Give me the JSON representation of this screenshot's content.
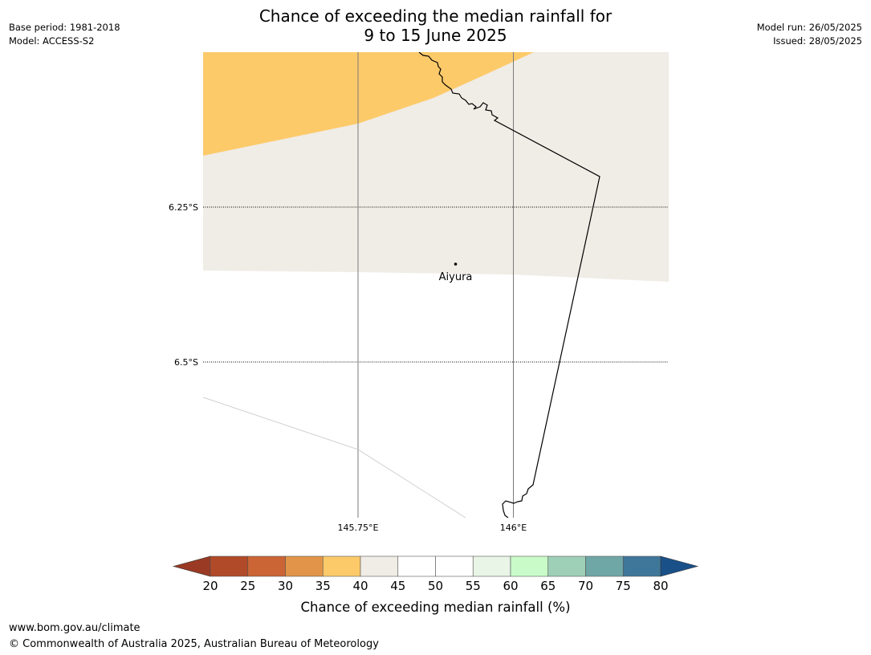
{
  "title": {
    "line1": "Chance of exceeding the median rainfall for",
    "line2": "9 to 15 June 2025"
  },
  "info_left": {
    "base_period": "Base period: 1981-2018",
    "model": "Model: ACCESS-S2"
  },
  "info_right": {
    "model_run": "Model run: 26/05/2025",
    "issued": "Issued: 28/05/2025"
  },
  "map": {
    "latitude_labels": [
      "6.25°S",
      "6.5°S"
    ],
    "longitude_labels": [
      "145.75°E",
      "146°E"
    ],
    "place_name": "Aiyura",
    "region_colors": {
      "35_to_40": "#fdca6a",
      "40_to_45": "#f0ece6",
      "45_to_55": "#ffffff"
    }
  },
  "colorbar": {
    "title": "Chance of exceeding median rainfall (%)",
    "ticks": [
      "20",
      "25",
      "30",
      "35",
      "40",
      "45",
      "50",
      "55",
      "60",
      "65",
      "70",
      "75",
      "80"
    ],
    "below_color": "#9a3a24",
    "above_color": "#1a5088",
    "bins": [
      {
        "range": "20-25",
        "color": "#b04a28"
      },
      {
        "range": "25-30",
        "color": "#cc6535"
      },
      {
        "range": "30-35",
        "color": "#e29548"
      },
      {
        "range": "35-40",
        "color": "#fdca6a"
      },
      {
        "range": "40-45",
        "color": "#f0ece6"
      },
      {
        "range": "45-50",
        "color": "#ffffff"
      },
      {
        "range": "50-55",
        "color": "#ffffff"
      },
      {
        "range": "55-60",
        "color": "#e9f5e7"
      },
      {
        "range": "60-65",
        "color": "#c9fbc9"
      },
      {
        "range": "65-70",
        "color": "#9ed0b7"
      },
      {
        "range": "70-75",
        "color": "#6fa7a7"
      },
      {
        "range": "75-80",
        "color": "#3f779a"
      }
    ]
  },
  "footer": {
    "website": "www.bom.gov.au/climate",
    "copyright": "© Commonwealth of Australia 2025, Australian Bureau of Meteorology"
  }
}
